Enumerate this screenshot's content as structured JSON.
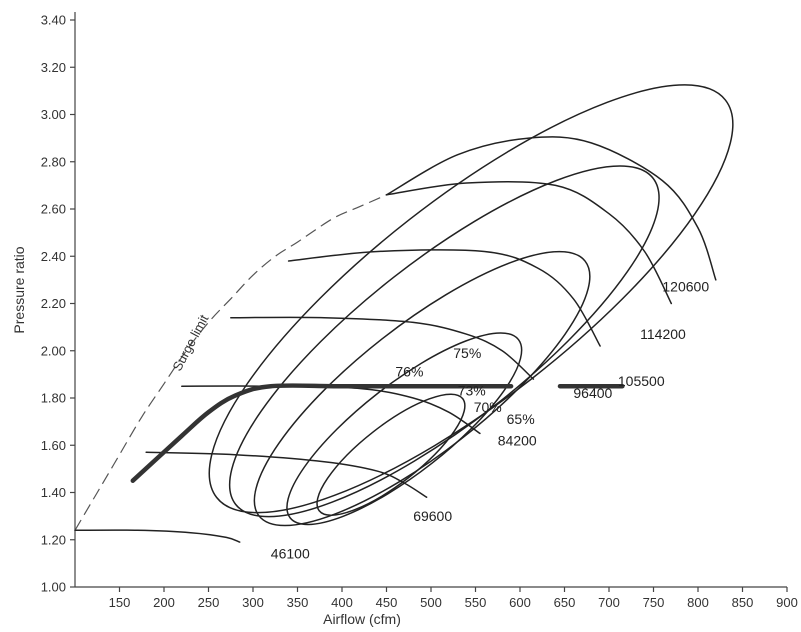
{
  "chart_data": {
    "type": "line",
    "title": "",
    "xlabel": "Airflow (cfm)",
    "ylabel": "Pressure ratio",
    "xlim": [
      100,
      900
    ],
    "ylim": [
      1.0,
      3.4
    ],
    "x_ticks": [
      "150",
      "200",
      "250",
      "300",
      "350",
      "400",
      "450",
      "500",
      "550",
      "600",
      "650",
      "700",
      "750",
      "800",
      "850",
      "900"
    ],
    "y_ticks": [
      "1.00",
      "1.20",
      "1.40",
      "1.60",
      "1.80",
      "2.00",
      "2.20",
      "2.40",
      "2.60",
      "2.80",
      "3.00",
      "3.20",
      "3.40"
    ],
    "grid": false,
    "surge_label": "Surge limit",
    "surge_line": {
      "x": [
        100,
        125,
        150,
        175,
        200,
        225,
        250,
        275,
        300,
        325,
        350,
        390,
        420,
        450
      ],
      "y": [
        1.24,
        1.4,
        1.56,
        1.72,
        1.86,
        2.0,
        2.12,
        2.22,
        2.32,
        2.4,
        2.46,
        2.56,
        2.61,
        2.66
      ]
    },
    "speed_lines": [
      {
        "name": "46100",
        "x": [
          100,
          170,
          230,
          270,
          285
        ],
        "y": [
          1.24,
          1.24,
          1.23,
          1.21,
          1.19
        ]
      },
      {
        "name": "69600",
        "x": [
          180,
          280,
          380,
          440,
          470,
          495
        ],
        "y": [
          1.57,
          1.56,
          1.53,
          1.49,
          1.44,
          1.38
        ]
      },
      {
        "name": "84200",
        "x": [
          220,
          320,
          420,
          480,
          520,
          555
        ],
        "y": [
          1.85,
          1.85,
          1.84,
          1.8,
          1.74,
          1.65
        ]
      },
      {
        "name": "96400",
        "x": [
          275,
          380,
          480,
          540,
          580,
          615
        ],
        "y": [
          2.14,
          2.14,
          2.12,
          2.07,
          2.0,
          1.88
        ]
      },
      {
        "name": "105500",
        "x": [
          340,
          440,
          560,
          620,
          660,
          690
        ],
        "y": [
          2.38,
          2.42,
          2.42,
          2.35,
          2.22,
          2.02
        ]
      },
      {
        "name": "114200",
        "x": [
          450,
          540,
          640,
          700,
          740,
          770
        ],
        "y": [
          2.66,
          2.71,
          2.7,
          2.58,
          2.42,
          2.2
        ]
      },
      {
        "name": "120600",
        "x": [
          450,
          530,
          610,
          680,
          760,
          800,
          820
        ],
        "y": [
          2.66,
          2.83,
          2.9,
          2.88,
          2.72,
          2.52,
          2.3
        ]
      }
    ],
    "efficiency_contours": [
      {
        "name": "76%",
        "cx": 455,
        "cy": 1.56,
        "rx": 110,
        "ry": 0.34
      },
      {
        "name": "75%",
        "cx": 470,
        "cy": 1.67,
        "rx": 175,
        "ry": 0.52
      },
      {
        "name": "73%",
        "cx": 490,
        "cy": 1.84,
        "rx": 250,
        "ry": 0.75
      },
      {
        "name": "70%",
        "cx": 515,
        "cy": 2.04,
        "rx": 320,
        "ry": 0.96
      },
      {
        "name": "65%",
        "cx": 545,
        "cy": 2.22,
        "rx": 390,
        "ry": 1.18
      }
    ],
    "operating_line": {
      "x": [
        165,
        220,
        250,
        280,
        320,
        400,
        500,
        590
      ],
      "y": [
        1.45,
        1.64,
        1.74,
        1.81,
        1.85,
        1.85,
        1.85,
        1.85
      ],
      "x2": [
        645,
        715
      ],
      "y2": [
        1.85,
        1.85
      ]
    },
    "annotations": [
      {
        "text": "75%",
        "x": 525,
        "y": 1.97
      },
      {
        "text": "76%",
        "x": 460,
        "y": 1.89
      },
      {
        "text": "73%",
        "x": 530,
        "y": 1.81
      },
      {
        "text": "70%",
        "x": 548,
        "y": 1.74
      },
      {
        "text": "65%",
        "x": 585,
        "y": 1.69
      },
      {
        "text": "120600",
        "x": 760,
        "y": 2.25
      },
      {
        "text": "114200",
        "x": 735,
        "y": 2.05
      },
      {
        "text": "105500",
        "x": 710,
        "y": 1.85
      },
      {
        "text": "96400",
        "x": 660,
        "y": 1.8
      },
      {
        "text": "84200",
        "x": 575,
        "y": 1.6
      },
      {
        "text": "69600",
        "x": 480,
        "y": 1.28
      },
      {
        "text": "46100",
        "x": 320,
        "y": 1.12
      }
    ]
  }
}
